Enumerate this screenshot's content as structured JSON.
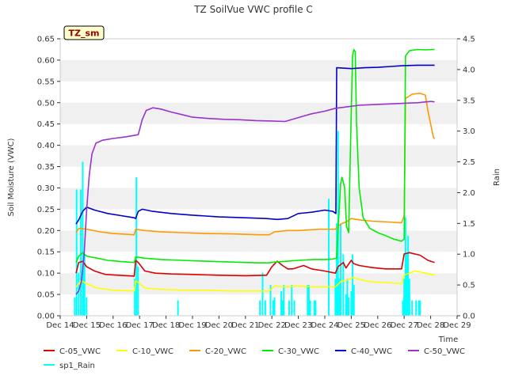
{
  "chart_data": {
    "type": "line",
    "title": "TZ SoilVue VWC profile C",
    "site_badge": "TZ_sm",
    "xlabel": "Time",
    "ylabel": "Soil Moisture (VWC)",
    "y2label": "Rain",
    "xlim": [
      14,
      29
    ],
    "ylim": [
      0.0,
      0.65
    ],
    "y2lim": [
      0.0,
      4.5
    ],
    "grid": "horizontal bands",
    "legend_placement": "bottom",
    "x_ticks": [
      {
        "value": 14,
        "label": "Dec 14"
      },
      {
        "value": 15,
        "label": "Dec 15"
      },
      {
        "value": 16,
        "label": "Dec 16"
      },
      {
        "value": 17,
        "label": "Dec 17"
      },
      {
        "value": 18,
        "label": "Dec 18"
      },
      {
        "value": 19,
        "label": "Dec 19"
      },
      {
        "value": 20,
        "label": "Dec 20"
      },
      {
        "value": 21,
        "label": "Dec 21"
      },
      {
        "value": 22,
        "label": "Dec 22"
      },
      {
        "value": 23,
        "label": "Dec 23"
      },
      {
        "value": 24,
        "label": "Dec 24"
      },
      {
        "value": 25,
        "label": "Dec 25"
      },
      {
        "value": 26,
        "label": "Dec 26"
      },
      {
        "value": 27,
        "label": "Dec 27"
      },
      {
        "value": 28,
        "label": "Dec 28"
      },
      {
        "value": 29,
        "label": "Dec 29"
      }
    ],
    "y_ticks": [
      "0.00",
      "0.05",
      "0.10",
      "0.15",
      "0.20",
      "0.25",
      "0.30",
      "0.35",
      "0.40",
      "0.45",
      "0.50",
      "0.55",
      "0.60",
      "0.65"
    ],
    "y2_ticks": [
      "0.0",
      "0.5",
      "1.0",
      "1.5",
      "2.0",
      "2.5",
      "3.0",
      "3.5",
      "4.0",
      "4.5"
    ],
    "series": [
      {
        "name": "C-05_VWC",
        "color": "#dd0000",
        "axis": "left",
        "points": [
          [
            14.6,
            0.1
          ],
          [
            14.7,
            0.125
          ],
          [
            14.85,
            0.128
          ],
          [
            15.0,
            0.115
          ],
          [
            15.3,
            0.105
          ],
          [
            15.7,
            0.097
          ],
          [
            16.2,
            0.095
          ],
          [
            16.8,
            0.093
          ],
          [
            16.85,
            0.13
          ],
          [
            16.95,
            0.125
          ],
          [
            17.2,
            0.105
          ],
          [
            17.6,
            0.1
          ],
          [
            18.2,
            0.098
          ],
          [
            19.0,
            0.097
          ],
          [
            20.0,
            0.095
          ],
          [
            21.0,
            0.094
          ],
          [
            21.8,
            0.095
          ],
          [
            22.0,
            0.115
          ],
          [
            22.2,
            0.128
          ],
          [
            22.4,
            0.118
          ],
          [
            22.6,
            0.11
          ],
          [
            22.8,
            0.11
          ],
          [
            23.2,
            0.118
          ],
          [
            23.5,
            0.11
          ],
          [
            24.0,
            0.105
          ],
          [
            24.4,
            0.1
          ],
          [
            24.5,
            0.115
          ],
          [
            24.6,
            0.12
          ],
          [
            24.7,
            0.125
          ],
          [
            24.8,
            0.112
          ],
          [
            25.0,
            0.13
          ],
          [
            25.1,
            0.122
          ],
          [
            25.3,
            0.118
          ],
          [
            25.8,
            0.113
          ],
          [
            26.3,
            0.11
          ],
          [
            26.9,
            0.11
          ],
          [
            27.0,
            0.145
          ],
          [
            27.2,
            0.148
          ],
          [
            27.6,
            0.142
          ],
          [
            27.9,
            0.13
          ],
          [
            28.15,
            0.125
          ]
        ]
      },
      {
        "name": "C-10_VWC",
        "color": "#ffff00",
        "axis": "left",
        "points": [
          [
            14.6,
            0.068
          ],
          [
            14.8,
            0.082
          ],
          [
            15.0,
            0.075
          ],
          [
            15.4,
            0.065
          ],
          [
            16.0,
            0.06
          ],
          [
            16.8,
            0.058
          ],
          [
            16.85,
            0.082
          ],
          [
            16.95,
            0.078
          ],
          [
            17.2,
            0.065
          ],
          [
            17.8,
            0.062
          ],
          [
            18.6,
            0.06
          ],
          [
            19.5,
            0.06
          ],
          [
            20.5,
            0.058
          ],
          [
            21.5,
            0.058
          ],
          [
            21.9,
            0.058
          ],
          [
            22.1,
            0.07
          ],
          [
            22.5,
            0.068
          ],
          [
            23.0,
            0.07
          ],
          [
            23.5,
            0.068
          ],
          [
            24.0,
            0.068
          ],
          [
            24.4,
            0.068
          ],
          [
            24.6,
            0.08
          ],
          [
            24.9,
            0.085
          ],
          [
            25.1,
            0.09
          ],
          [
            25.3,
            0.085
          ],
          [
            25.7,
            0.08
          ],
          [
            26.3,
            0.078
          ],
          [
            26.9,
            0.075
          ],
          [
            27.0,
            0.095
          ],
          [
            27.4,
            0.105
          ],
          [
            27.8,
            0.1
          ],
          [
            28.15,
            0.095
          ]
        ]
      },
      {
        "name": "C-20_VWC",
        "color": "#ff9900",
        "axis": "left",
        "points": [
          [
            14.6,
            0.195
          ],
          [
            14.7,
            0.205
          ],
          [
            15.0,
            0.203
          ],
          [
            15.5,
            0.197
          ],
          [
            16.0,
            0.193
          ],
          [
            16.8,
            0.19
          ],
          [
            16.85,
            0.203
          ],
          [
            17.2,
            0.2
          ],
          [
            17.8,
            0.197
          ],
          [
            18.6,
            0.195
          ],
          [
            19.5,
            0.193
          ],
          [
            20.5,
            0.192
          ],
          [
            21.5,
            0.19
          ],
          [
            21.9,
            0.19
          ],
          [
            22.1,
            0.197
          ],
          [
            22.6,
            0.2
          ],
          [
            23.0,
            0.2
          ],
          [
            23.8,
            0.203
          ],
          [
            24.4,
            0.203
          ],
          [
            24.5,
            0.21
          ],
          [
            24.6,
            0.215
          ],
          [
            24.8,
            0.22
          ],
          [
            25.0,
            0.228
          ],
          [
            25.3,
            0.225
          ],
          [
            25.8,
            0.222
          ],
          [
            26.4,
            0.22
          ],
          [
            26.9,
            0.218
          ],
          [
            27.0,
            0.235
          ],
          [
            27.05,
            0.51
          ],
          [
            27.3,
            0.52
          ],
          [
            27.6,
            0.522
          ],
          [
            27.8,
            0.518
          ],
          [
            27.9,
            0.48
          ],
          [
            28.0,
            0.45
          ],
          [
            28.1,
            0.42
          ],
          [
            28.15,
            0.415
          ]
        ]
      },
      {
        "name": "C-30_VWC",
        "color": "#00ee00",
        "axis": "left",
        "points": [
          [
            14.6,
            0.125
          ],
          [
            14.7,
            0.14
          ],
          [
            14.85,
            0.148
          ],
          [
            15.0,
            0.14
          ],
          [
            15.4,
            0.135
          ],
          [
            15.8,
            0.13
          ],
          [
            16.3,
            0.127
          ],
          [
            16.8,
            0.125
          ],
          [
            16.85,
            0.138
          ],
          [
            17.2,
            0.135
          ],
          [
            17.8,
            0.132
          ],
          [
            18.6,
            0.13
          ],
          [
            19.5,
            0.128
          ],
          [
            20.5,
            0.126
          ],
          [
            21.5,
            0.124
          ],
          [
            21.9,
            0.124
          ],
          [
            22.1,
            0.126
          ],
          [
            22.6,
            0.128
          ],
          [
            23.0,
            0.13
          ],
          [
            23.6,
            0.132
          ],
          [
            24.0,
            0.132
          ],
          [
            24.3,
            0.133
          ],
          [
            24.45,
            0.135
          ],
          [
            24.5,
            0.2
          ],
          [
            24.6,
            0.31
          ],
          [
            24.65,
            0.325
          ],
          [
            24.75,
            0.3
          ],
          [
            24.82,
            0.21
          ],
          [
            24.9,
            0.195
          ],
          [
            25.0,
            0.48
          ],
          [
            25.05,
            0.61
          ],
          [
            25.1,
            0.625
          ],
          [
            25.15,
            0.62
          ],
          [
            25.2,
            0.45
          ],
          [
            25.3,
            0.3
          ],
          [
            25.45,
            0.23
          ],
          [
            25.7,
            0.205
          ],
          [
            26.0,
            0.195
          ],
          [
            26.3,
            0.188
          ],
          [
            26.6,
            0.18
          ],
          [
            26.9,
            0.175
          ],
          [
            27.0,
            0.18
          ],
          [
            27.05,
            0.61
          ],
          [
            27.2,
            0.622
          ],
          [
            27.5,
            0.625
          ],
          [
            27.8,
            0.624
          ],
          [
            28.15,
            0.625
          ]
        ]
      },
      {
        "name": "C-40_VWC",
        "color": "#0000cc",
        "axis": "left",
        "points": [
          [
            14.6,
            0.215
          ],
          [
            14.7,
            0.225
          ],
          [
            14.85,
            0.245
          ],
          [
            15.0,
            0.255
          ],
          [
            15.3,
            0.248
          ],
          [
            15.8,
            0.24
          ],
          [
            16.3,
            0.235
          ],
          [
            16.8,
            0.23
          ],
          [
            16.85,
            0.228
          ],
          [
            16.95,
            0.245
          ],
          [
            17.1,
            0.25
          ],
          [
            17.5,
            0.245
          ],
          [
            18.2,
            0.24
          ],
          [
            19.0,
            0.236
          ],
          [
            20.0,
            0.232
          ],
          [
            21.0,
            0.23
          ],
          [
            21.8,
            0.228
          ],
          [
            22.2,
            0.226
          ],
          [
            22.6,
            0.228
          ],
          [
            23.0,
            0.24
          ],
          [
            23.5,
            0.243
          ],
          [
            24.0,
            0.248
          ],
          [
            24.3,
            0.245
          ],
          [
            24.42,
            0.24
          ],
          [
            24.45,
            0.582
          ],
          [
            25.0,
            0.58
          ],
          [
            25.5,
            0.582
          ],
          [
            26.0,
            0.583
          ],
          [
            26.5,
            0.585
          ],
          [
            27.0,
            0.587
          ],
          [
            27.5,
            0.588
          ],
          [
            28.15,
            0.588
          ]
        ]
      },
      {
        "name": "C-50_VWC",
        "color": "#9933cc",
        "axis": "left",
        "points": [
          [
            14.6,
            0.05
          ],
          [
            14.7,
            0.058
          ],
          [
            14.8,
            0.08
          ],
          [
            14.9,
            0.14
          ],
          [
            15.0,
            0.25
          ],
          [
            15.1,
            0.33
          ],
          [
            15.2,
            0.38
          ],
          [
            15.35,
            0.405
          ],
          [
            15.6,
            0.412
          ],
          [
            16.0,
            0.416
          ],
          [
            16.5,
            0.42
          ],
          [
            16.95,
            0.425
          ],
          [
            17.1,
            0.46
          ],
          [
            17.25,
            0.482
          ],
          [
            17.5,
            0.488
          ],
          [
            17.8,
            0.485
          ],
          [
            18.2,
            0.478
          ],
          [
            18.6,
            0.472
          ],
          [
            19.0,
            0.466
          ],
          [
            19.6,
            0.463
          ],
          [
            20.2,
            0.461
          ],
          [
            20.8,
            0.46
          ],
          [
            21.4,
            0.458
          ],
          [
            22.0,
            0.457
          ],
          [
            22.5,
            0.456
          ],
          [
            23.0,
            0.465
          ],
          [
            23.5,
            0.474
          ],
          [
            24.0,
            0.48
          ],
          [
            24.4,
            0.487
          ],
          [
            24.8,
            0.49
          ],
          [
            25.3,
            0.494
          ],
          [
            26.0,
            0.496
          ],
          [
            26.8,
            0.498
          ],
          [
            27.5,
            0.5
          ],
          [
            28.0,
            0.503
          ],
          [
            28.15,
            0.502
          ]
        ]
      },
      {
        "name": "sp1_Rain",
        "color": "#00ffff",
        "axis": "right",
        "mode": "spikes",
        "points": [
          [
            14.55,
            0.3
          ],
          [
            14.62,
            2.05
          ],
          [
            14.7,
            0.7
          ],
          [
            14.78,
            2.05
          ],
          [
            14.85,
            2.5
          ],
          [
            14.88,
            1.0
          ],
          [
            14.92,
            1.0
          ],
          [
            15.0,
            0.3
          ],
          [
            16.82,
            0.6
          ],
          [
            16.88,
            2.25
          ],
          [
            16.94,
            0.8
          ],
          [
            18.45,
            0.25
          ],
          [
            21.55,
            0.25
          ],
          [
            21.65,
            0.7
          ],
          [
            21.75,
            0.25
          ],
          [
            21.95,
            0.5
          ],
          [
            22.05,
            0.25
          ],
          [
            22.1,
            0.3
          ],
          [
            22.35,
            0.4
          ],
          [
            22.4,
            0.25
          ],
          [
            22.45,
            0.5
          ],
          [
            22.65,
            0.25
          ],
          [
            22.75,
            0.5
          ],
          [
            22.85,
            0.25
          ],
          [
            23.35,
            0.5
          ],
          [
            23.4,
            0.5
          ],
          [
            23.45,
            0.25
          ],
          [
            23.6,
            0.25
          ],
          [
            23.65,
            0.25
          ],
          [
            24.15,
            1.9
          ],
          [
            24.4,
            0.6
          ],
          [
            24.45,
            1.5
          ],
          [
            24.5,
            3.0
          ],
          [
            24.55,
            0.6
          ],
          [
            24.6,
            1.5
          ],
          [
            24.7,
            1.0
          ],
          [
            24.8,
            0.35
          ],
          [
            24.85,
            0.6
          ],
          [
            24.9,
            0.3
          ],
          [
            25.0,
            0.4
          ],
          [
            25.05,
            1.0
          ],
          [
            25.1,
            0.5
          ],
          [
            26.95,
            0.25
          ],
          [
            27.0,
            0.6
          ],
          [
            27.05,
            1.6
          ],
          [
            27.1,
            1.0
          ],
          [
            27.15,
            1.3
          ],
          [
            27.2,
            0.6
          ],
          [
            27.3,
            0.25
          ],
          [
            27.45,
            0.25
          ],
          [
            27.55,
            0.25
          ],
          [
            27.6,
            0.25
          ]
        ]
      }
    ]
  }
}
